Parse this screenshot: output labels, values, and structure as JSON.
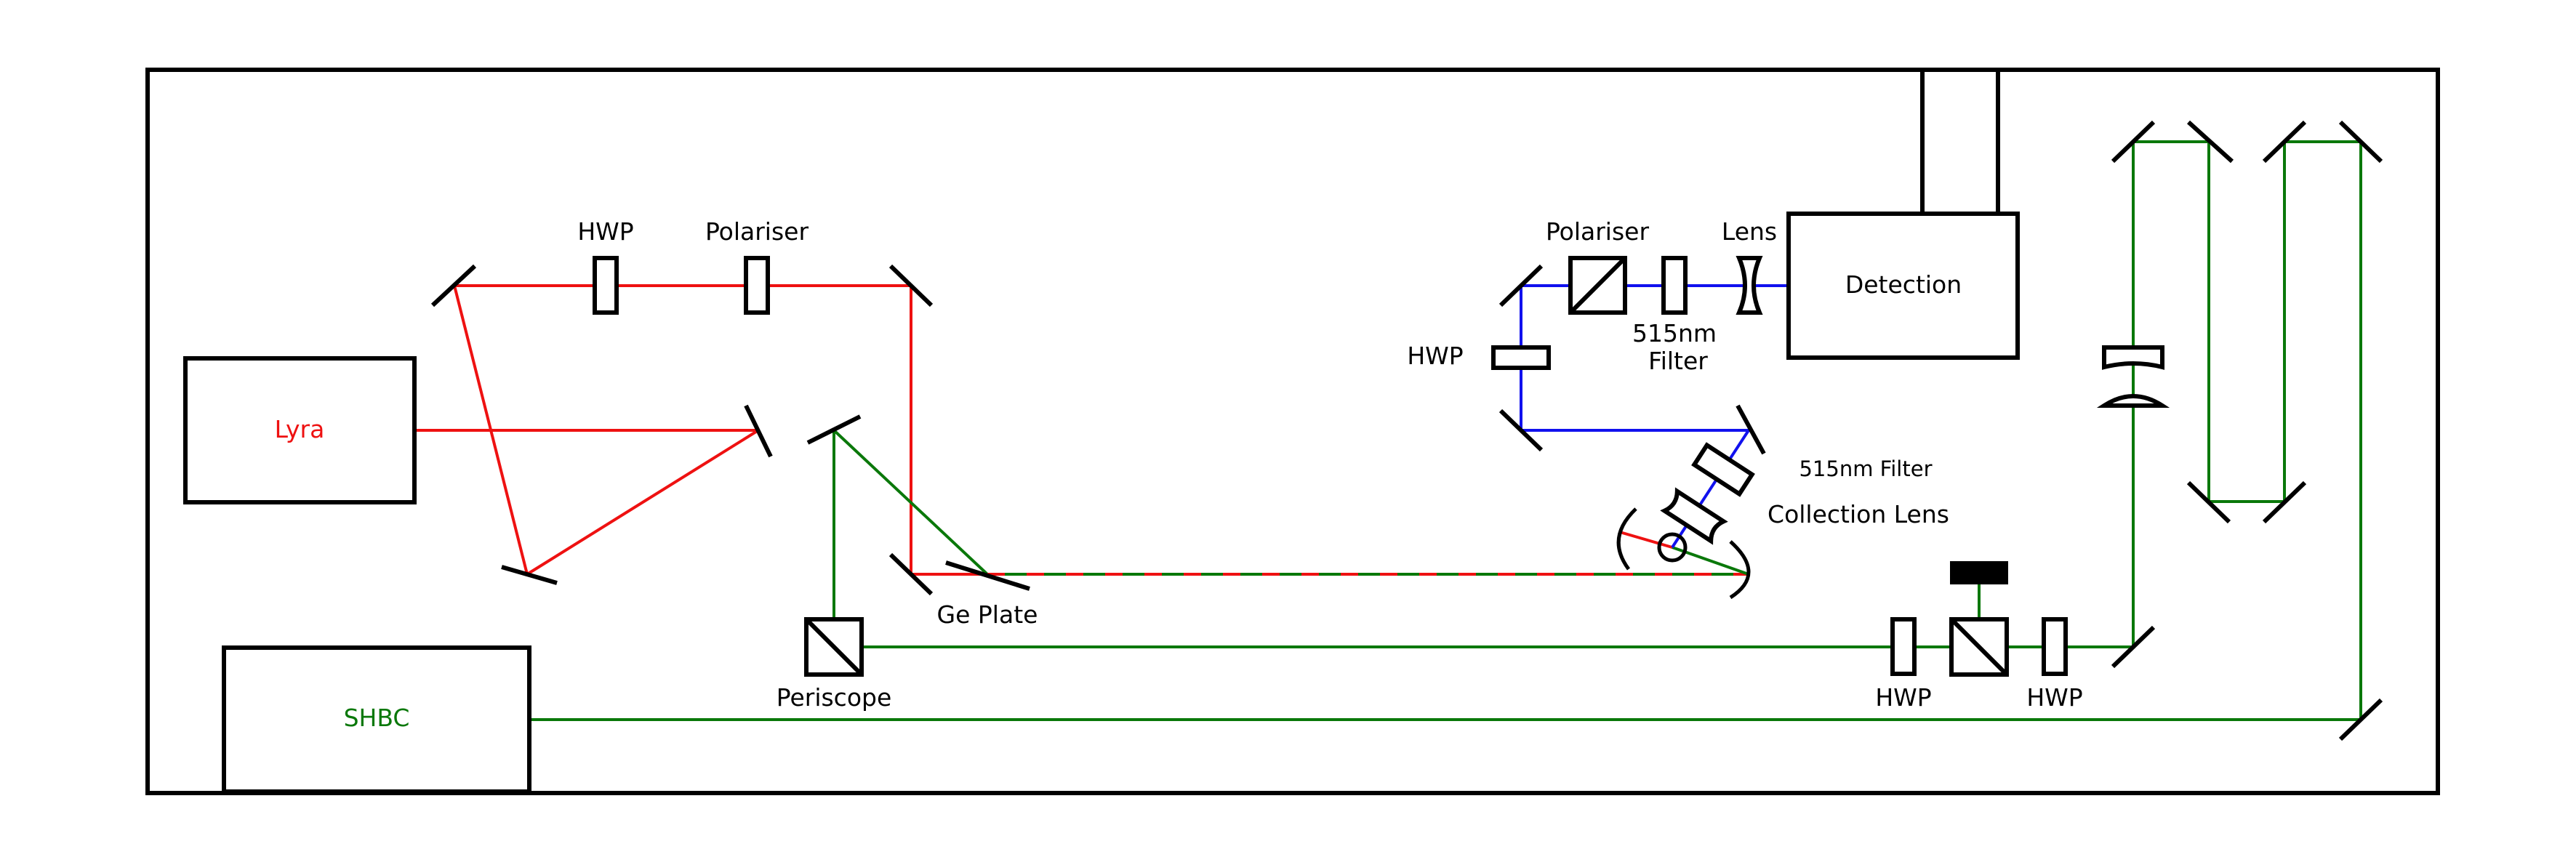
{
  "colors": {
    "outline": "#000000",
    "red_beam": "#ee1111",
    "green_beam": "#0a780a",
    "blue_beam": "#1111ee",
    "lyra_text": "#ee1111",
    "shbc_text": "#0a780a"
  },
  "labels": {
    "lyra": "Lyra",
    "shbc": "SHBC",
    "detection": "Detection",
    "hwp_top": "HWP",
    "polariser_top": "Polariser",
    "polariser_det": "Polariser",
    "lens": "Lens",
    "filter_515_a_line1": "515nm",
    "filter_515_a_line2": "Filter",
    "hwp_blue": "HWP",
    "filter_515_b": "515nm Filter",
    "collection_lens": "Collection Lens",
    "ge_plate": "Ge Plate",
    "periscope": "Periscope",
    "hwp_bottom_left": "HWP",
    "hwp_bottom_right": "HWP"
  }
}
